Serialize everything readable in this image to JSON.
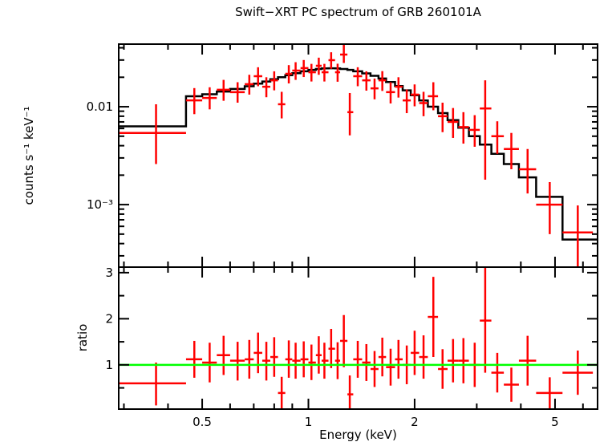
{
  "title": "Swift−XRT PC spectrum of GRB 260101A",
  "xlabel": "Energy (keV)",
  "colors": {
    "background": "#ffffff",
    "foreground": "#000000",
    "data": "#ff0000",
    "model": "#000000",
    "ratio_line": "#00ff00"
  },
  "chart_data": [
    {
      "type": "scatter",
      "panel": "spectrum",
      "title": "Swift−XRT PC spectrum of GRB 260101A",
      "xlabel": "Energy (keV)",
      "ylabel": "counts s⁻¹ keV⁻¹",
      "xscale": "log",
      "yscale": "log",
      "xlim": [
        0.29,
        6.6
      ],
      "ylim": [
        0.00023,
        0.0436
      ],
      "grid": false,
      "legend_position": "none",
      "xticks": {
        "major": [
          0.5,
          1,
          2,
          5
        ],
        "labels": [
          "0.5",
          "1",
          "2",
          "5"
        ],
        "minor": [
          0.3,
          0.4,
          0.6,
          0.7,
          0.8,
          0.9,
          3,
          4,
          6
        ]
      },
      "yticks": {
        "major": [
          0.01,
          0.001
        ],
        "labels": [
          "0.01",
          "10⁻³"
        ],
        "minor": [
          0.0003,
          0.0004,
          0.0005,
          0.0006,
          0.0007,
          0.0008,
          0.0009,
          0.002,
          0.003,
          0.004,
          0.005,
          0.006,
          0.007,
          0.008,
          0.009,
          0.02,
          0.03,
          0.04
        ]
      },
      "series": [
        {
          "name": "observed-counts",
          "color": "#ff0000",
          "marker": "cross-with-error-bars",
          "columns": [
            "energy_keV",
            "energy_lo",
            "energy_hi",
            "rate",
            "rate_lo",
            "rate_hi"
          ],
          "points": [
            [
              0.37,
              0.29,
              0.45,
              0.0054,
              0.0026,
              0.0106
            ],
            [
              0.475,
              0.45,
              0.5,
              0.0116,
              0.0084,
              0.0155
            ],
            [
              0.525,
              0.5,
              0.55,
              0.0123,
              0.0094,
              0.0158
            ],
            [
              0.575,
              0.55,
              0.6,
              0.0149,
              0.0115,
              0.0188
            ],
            [
              0.63,
              0.6,
              0.66,
              0.0141,
              0.011,
              0.0178
            ],
            [
              0.68,
              0.66,
              0.7,
              0.017,
              0.0133,
              0.0212
            ],
            [
              0.72,
              0.7,
              0.74,
              0.0205,
              0.0162,
              0.0253
            ],
            [
              0.76,
              0.74,
              0.78,
              0.016,
              0.0125,
              0.02
            ],
            [
              0.8,
              0.78,
              0.82,
              0.0186,
              0.0147,
              0.023
            ],
            [
              0.84,
              0.82,
              0.86,
              0.0106,
              0.0076,
              0.0142
            ],
            [
              0.88,
              0.86,
              0.9,
              0.0217,
              0.0173,
              0.0266
            ],
            [
              0.92,
              0.9,
              0.95,
              0.0234,
              0.0188,
              0.0285
            ],
            [
              0.97,
              0.95,
              1.0,
              0.0248,
              0.0201,
              0.03
            ],
            [
              1.02,
              1.0,
              1.05,
              0.0225,
              0.0181,
              0.0274
            ],
            [
              1.07,
              1.05,
              1.09,
              0.0262,
              0.0212,
              0.0317
            ],
            [
              1.11,
              1.09,
              1.14,
              0.0225,
              0.0181,
              0.0274
            ],
            [
              1.16,
              1.14,
              1.19,
              0.0299,
              0.0244,
              0.036
            ],
            [
              1.21,
              1.19,
              1.23,
              0.0225,
              0.018,
              0.0275
            ],
            [
              1.26,
              1.23,
              1.29,
              0.0341,
              0.028,
              0.043
            ],
            [
              1.31,
              1.29,
              1.34,
              0.0088,
              0.0051,
              0.0138
            ],
            [
              1.38,
              1.34,
              1.42,
              0.0205,
              0.0162,
              0.0253
            ],
            [
              1.46,
              1.42,
              1.5,
              0.0186,
              0.0146,
              0.023
            ],
            [
              1.54,
              1.5,
              1.58,
              0.0154,
              0.0119,
              0.0194
            ],
            [
              1.62,
              1.58,
              1.66,
              0.0186,
              0.0145,
              0.0231
            ],
            [
              1.71,
              1.66,
              1.76,
              0.0141,
              0.0108,
              0.0178
            ],
            [
              1.8,
              1.76,
              1.85,
              0.016,
              0.0124,
              0.02
            ],
            [
              1.9,
              1.85,
              1.95,
              0.0116,
              0.0086,
              0.015
            ],
            [
              2.0,
              1.95,
              2.06,
              0.0133,
              0.0101,
              0.0169
            ],
            [
              2.12,
              2.06,
              2.18,
              0.0109,
              0.008,
              0.0142
            ],
            [
              2.26,
              2.18,
              2.33,
              0.0128,
              0.0092,
              0.0178
            ],
            [
              2.4,
              2.33,
              2.48,
              0.008,
              0.0055,
              0.011
            ],
            [
              2.57,
              2.48,
              2.66,
              0.007,
              0.0048,
              0.0097
            ],
            [
              2.75,
              2.66,
              2.85,
              0.0062,
              0.0042,
              0.0088
            ],
            [
              2.96,
              2.85,
              3.06,
              0.0058,
              0.0039,
              0.0082
            ],
            [
              3.17,
              3.06,
              3.3,
              0.0096,
              0.0018,
              0.0186
            ],
            [
              3.43,
              3.3,
              3.58,
              0.005,
              0.0033,
              0.0071
            ],
            [
              3.76,
              3.58,
              3.95,
              0.0037,
              0.0023,
              0.0054
            ],
            [
              4.18,
              3.95,
              4.42,
              0.0023,
              0.0013,
              0.0037
            ],
            [
              4.83,
              4.42,
              5.25,
              0.001,
              0.0005,
              0.0017
            ],
            [
              5.8,
              5.25,
              6.4,
              0.00052,
              0.00022,
              0.00098
            ]
          ]
        },
        {
          "name": "folded-model",
          "color": "#000000",
          "marker": "step-line",
          "columns": [
            "bin_lo_keV",
            "bin_hi_keV",
            "rate"
          ],
          "steps": [
            [
              0.29,
              0.45,
              0.0063
            ],
            [
              0.45,
              0.5,
              0.0128
            ],
            [
              0.5,
              0.55,
              0.0134
            ],
            [
              0.55,
              0.6,
              0.0143
            ],
            [
              0.6,
              0.66,
              0.0152
            ],
            [
              0.66,
              0.7,
              0.0162
            ],
            [
              0.7,
              0.74,
              0.0172
            ],
            [
              0.74,
              0.78,
              0.0181
            ],
            [
              0.78,
              0.82,
              0.0191
            ],
            [
              0.82,
              0.86,
              0.02
            ],
            [
              0.86,
              0.9,
              0.021
            ],
            [
              0.9,
              0.95,
              0.022
            ],
            [
              0.95,
              1.0,
              0.023
            ],
            [
              1.0,
              1.05,
              0.0238
            ],
            [
              1.05,
              1.09,
              0.0243
            ],
            [
              1.09,
              1.14,
              0.0246
            ],
            [
              1.14,
              1.19,
              0.0247
            ],
            [
              1.19,
              1.23,
              0.0246
            ],
            [
              1.23,
              1.29,
              0.0243
            ],
            [
              1.29,
              1.34,
              0.0238
            ],
            [
              1.34,
              1.42,
              0.023
            ],
            [
              1.42,
              1.5,
              0.0219
            ],
            [
              1.5,
              1.58,
              0.0207
            ],
            [
              1.58,
              1.66,
              0.0194
            ],
            [
              1.66,
              1.76,
              0.0179
            ],
            [
              1.76,
              1.85,
              0.0163
            ],
            [
              1.85,
              1.95,
              0.0147
            ],
            [
              1.95,
              2.06,
              0.0131
            ],
            [
              2.06,
              2.18,
              0.0116
            ],
            [
              2.18,
              2.33,
              0.01
            ],
            [
              2.33,
              2.48,
              0.0086
            ],
            [
              2.48,
              2.66,
              0.0073
            ],
            [
              2.66,
              2.85,
              0.0061
            ],
            [
              2.85,
              3.06,
              0.005
            ],
            [
              3.06,
              3.3,
              0.0041
            ],
            [
              3.3,
              3.58,
              0.0033
            ],
            [
              3.58,
              3.95,
              0.0026
            ],
            [
              3.95,
              4.42,
              0.0019
            ],
            [
              4.42,
              5.25,
              0.0012
            ],
            [
              5.25,
              6.6,
              0.00044
            ]
          ]
        }
      ]
    },
    {
      "type": "scatter",
      "panel": "ratio",
      "ylabel": "ratio",
      "xscale": "log",
      "yscale": "linear",
      "xlim": [
        0.29,
        6.6
      ],
      "ylim": [
        0.04,
        3.12
      ],
      "grid": false,
      "reference_line": 1.0,
      "yticks": {
        "major": [
          1,
          2,
          3
        ],
        "labels": [
          "1",
          "2",
          "3"
        ],
        "minor": [
          0.5,
          1.5,
          2.5
        ]
      },
      "series": [
        {
          "name": "data-to-model-ratio",
          "color": "#ff0000",
          "marker": "cross-with-error-bars",
          "columns": [
            "energy_keV",
            "energy_lo",
            "energy_hi",
            "ratio",
            "ratio_lo",
            "ratio_hi"
          ],
          "points": [
            [
              0.37,
              0.29,
              0.45,
              0.6,
              0.12,
              1.05
            ],
            [
              0.475,
              0.45,
              0.5,
              1.12,
              0.72,
              1.52
            ],
            [
              0.525,
              0.5,
              0.55,
              1.05,
              0.62,
              1.48
            ],
            [
              0.575,
              0.55,
              0.6,
              1.21,
              0.78,
              1.63
            ],
            [
              0.63,
              0.6,
              0.66,
              1.09,
              0.66,
              1.5
            ],
            [
              0.68,
              0.66,
              0.7,
              1.12,
              0.7,
              1.54
            ],
            [
              0.72,
              0.7,
              0.74,
              1.26,
              0.82,
              1.7
            ],
            [
              0.76,
              0.74,
              0.78,
              1.09,
              0.66,
              1.5
            ],
            [
              0.8,
              0.78,
              0.82,
              1.17,
              0.74,
              1.6
            ],
            [
              0.84,
              0.82,
              0.86,
              0.39,
              0.04,
              0.74
            ],
            [
              0.88,
              0.86,
              0.9,
              1.12,
              0.72,
              1.53
            ],
            [
              0.92,
              0.9,
              0.95,
              1.09,
              0.7,
              1.48
            ],
            [
              0.97,
              0.95,
              1.0,
              1.12,
              0.73,
              1.51
            ],
            [
              1.02,
              1.0,
              1.05,
              1.05,
              0.67,
              1.44
            ],
            [
              1.07,
              1.05,
              1.09,
              1.21,
              0.81,
              1.62
            ],
            [
              1.11,
              1.09,
              1.14,
              1.09,
              0.7,
              1.48
            ],
            [
              1.16,
              1.14,
              1.19,
              1.35,
              0.93,
              1.78
            ],
            [
              1.21,
              1.19,
              1.23,
              1.09,
              0.69,
              1.49
            ],
            [
              1.26,
              1.23,
              1.29,
              1.52,
              0.95,
              2.08
            ],
            [
              1.31,
              1.29,
              1.34,
              0.36,
              0.01,
              0.77
            ],
            [
              1.38,
              1.34,
              1.42,
              1.12,
              0.72,
              1.52
            ],
            [
              1.46,
              1.42,
              1.5,
              1.05,
              0.65,
              1.45
            ],
            [
              1.54,
              1.5,
              1.58,
              0.91,
              0.52,
              1.3
            ],
            [
              1.62,
              1.58,
              1.66,
              1.17,
              0.75,
              1.59
            ],
            [
              1.71,
              1.66,
              1.76,
              0.95,
              0.55,
              1.35
            ],
            [
              1.8,
              1.76,
              1.85,
              1.12,
              0.7,
              1.54
            ],
            [
              1.9,
              1.85,
              1.95,
              1.0,
              0.58,
              1.42
            ],
            [
              2.0,
              1.95,
              2.06,
              1.26,
              0.78,
              1.74
            ],
            [
              2.12,
              2.06,
              2.18,
              1.17,
              0.7,
              1.64
            ],
            [
              2.26,
              2.18,
              2.33,
              2.04,
              1.17,
              2.91
            ],
            [
              2.4,
              2.33,
              2.48,
              0.91,
              0.48,
              1.34
            ],
            [
              2.57,
              2.48,
              2.66,
              1.09,
              0.62,
              1.56
            ],
            [
              2.75,
              2.66,
              2.85,
              1.09,
              0.6,
              1.58
            ],
            [
              2.96,
              2.85,
              3.06,
              1.0,
              0.52,
              1.48
            ],
            [
              3.17,
              3.06,
              3.3,
              1.96,
              0.83,
              3.12
            ],
            [
              3.43,
              3.3,
              3.58,
              0.83,
              0.4,
              1.26
            ],
            [
              3.76,
              3.58,
              3.95,
              0.57,
              0.2,
              0.94
            ],
            [
              4.18,
              3.95,
              4.42,
              1.09,
              0.55,
              1.63
            ],
            [
              4.83,
              4.42,
              5.25,
              0.39,
              0.05,
              0.73
            ],
            [
              5.8,
              5.25,
              6.4,
              0.83,
              0.35,
              1.31
            ]
          ]
        }
      ]
    }
  ]
}
